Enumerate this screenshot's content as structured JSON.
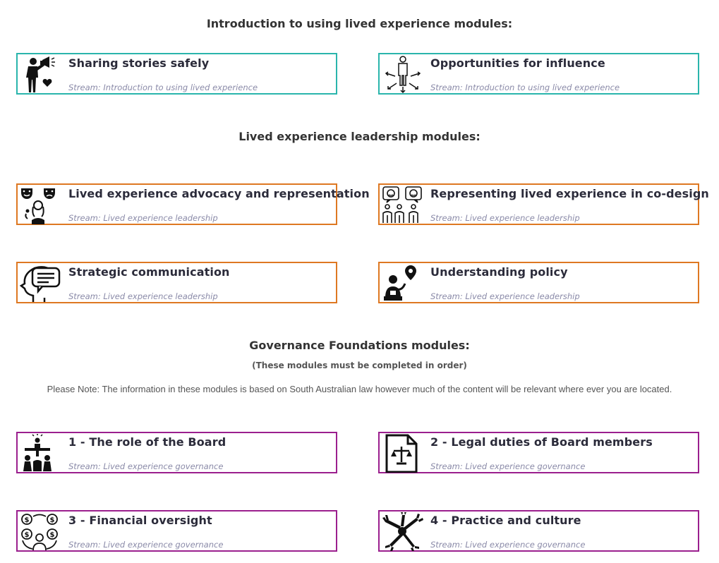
{
  "sections": [
    {
      "title": "Introduction to using lived experience modules:",
      "cards": [
        {
          "title": "Sharing stories safely",
          "stream": "Stream: Introduction to using lived experience",
          "icon": "megaphone-person-heart-icon"
        },
        {
          "title": "Opportunities for influence",
          "stream": "Stream: Introduction to using lived experience",
          "icon": "person-radiating-arrows-icon"
        }
      ]
    },
    {
      "title": "Lived experience leadership modules:",
      "cards": [
        {
          "title": "Lived experience advocacy and representation",
          "stream": "Stream: Lived experience leadership",
          "icon": "theatre-masks-person-icon"
        },
        {
          "title": "Representing lived experience in co-design",
          "stream": "Stream: Lived experience leadership",
          "icon": "group-speech-bubbles-icon"
        },
        {
          "title": "Strategic communication",
          "stream": "Stream: Lived experience leadership",
          "icon": "head-speech-bubble-icon"
        },
        {
          "title": "Understanding policy",
          "stream": "Stream: Lived experience leadership",
          "icon": "person-location-pin-icon"
        }
      ]
    },
    {
      "title": "Governance Foundations modules:",
      "note": "(These modules must be completed in order)",
      "please_note": "Please Note: The information in these modules is based on South Australian law however much of the content will be relevant where ever you are located.",
      "cards": [
        {
          "title": "1 - The role of the Board",
          "stream": "Stream: Lived experience governance",
          "icon": "board-table-people-icon"
        },
        {
          "title": "2 - Legal duties of Board members",
          "stream": "Stream: Lived experience governance",
          "icon": "document-scales-icon"
        },
        {
          "title": "3 - Financial oversight",
          "stream": "Stream: Lived experience governance",
          "icon": "person-money-cycle-icon"
        },
        {
          "title": "4 - Practice and culture",
          "stream": "Stream: Lived experience governance",
          "icon": "hands-together-icon"
        }
      ]
    }
  ],
  "colors": {
    "teal": "#2ab5ac",
    "orange": "#de7822",
    "purple": "#9b1f8e",
    "stream_text": "#8a8aa8",
    "title_text": "#2b2b3a"
  }
}
